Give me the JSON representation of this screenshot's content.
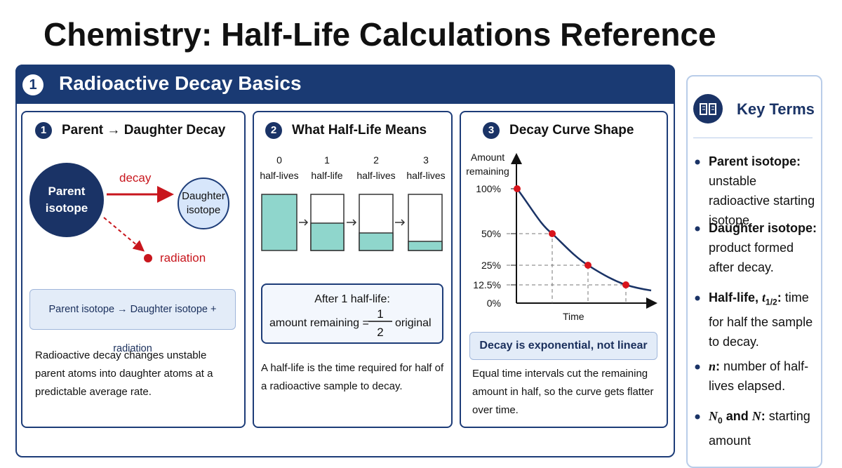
{
  "title": "Chemistry: Half-Life Calculations Reference",
  "section": {
    "number": "1",
    "title": "Radioactive Decay Basics"
  },
  "panels": [
    {
      "number": "1",
      "title": "Parent → Daughter Decay",
      "parent": "Parent isotope",
      "daughter": "Daughter isotope",
      "arrow_label": "decay",
      "emission": "radiation",
      "equation": "Parent isotope → Daughter isotope + radiation",
      "description": "Radioactive decay changes unstable parent atoms into daughter atoms at a predictable average rate."
    },
    {
      "number": "2",
      "title": "What Half-Life Means",
      "columns": [
        {
          "count": "0",
          "unit": "half-lives"
        },
        {
          "count": "1",
          "unit": "half-life"
        },
        {
          "count": "2",
          "unit": "half-lives"
        },
        {
          "count": "3",
          "unit": "half-lives"
        }
      ],
      "formula": {
        "heading": "After 1 half-life:",
        "left": "amount remaining =",
        "numerator": "1",
        "denominator": "2",
        "right": "original"
      },
      "description": "A half-life is the time required for half of a radioactive sample to decay."
    },
    {
      "number": "3",
      "title": "Decay Curve Shape",
      "y_axis_label": "Amount remaining",
      "x_axis_label": "Time",
      "y_labels": [
        "100%",
        "50%",
        "25%",
        "12.5%",
        "0%"
      ],
      "note": "Decay is exponential, not linear",
      "description": "Equal time intervals cut the remaining amount in half, so the curve gets flatter over time."
    }
  ],
  "sidebar": {
    "title": "Key Terms",
    "terms": [
      {
        "term": "Parent isotope:",
        "definition": "unstable radioactive starting isotope."
      },
      {
        "term": "Daughter isotope:",
        "definition": "product formed after decay."
      },
      {
        "term": "Half-life, ",
        "symbol": "t",
        "subscript": "1/2",
        "colon": ":",
        "definition": "time for half the sample to decay."
      },
      {
        "symbol": "n",
        "colon": ":",
        "definition": " number of half-lives elapsed."
      },
      {
        "symbol": "N",
        "subscript": "0",
        "joiner": " and ",
        "symbol2": "N",
        "colon": ":",
        "definition": "starting amount"
      }
    ]
  }
}
